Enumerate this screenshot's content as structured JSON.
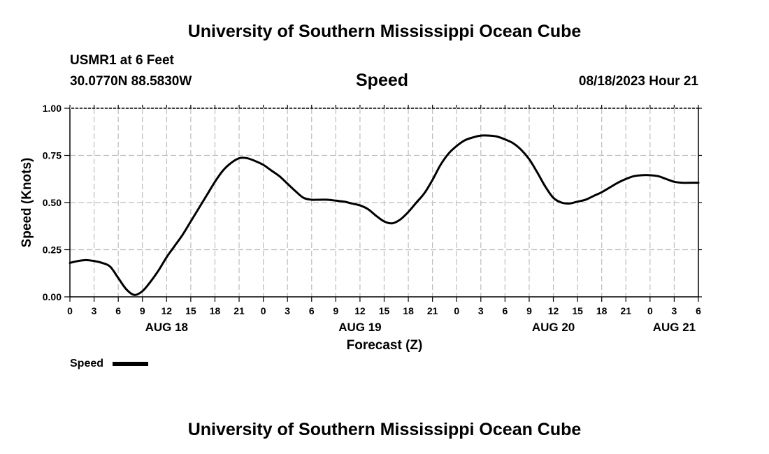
{
  "header": {
    "title": "University of Southern Mississippi Ocean Cube",
    "station": "USMR1 at 6 Feet",
    "coords": "30.0770N  88.5830W",
    "datetime": "08/18/2023 Hour 21",
    "footer_title": "University of Southern Mississippi Ocean Cube"
  },
  "chart_data": {
    "type": "line",
    "title": "Speed",
    "xlabel": "Forecast (Z)",
    "ylabel": "Speed (Knots)",
    "ylim": [
      0,
      1
    ],
    "xlim_hours": [
      0,
      78
    ],
    "yticks": [
      0,
      0.25,
      0.5,
      0.75,
      1.0
    ],
    "ytick_labels": [
      "0.00",
      "0.25",
      "0.50",
      "0.75",
      "1.00"
    ],
    "xtick_labels": [
      "0",
      "3",
      "6",
      "9",
      "12",
      "15",
      "18",
      "21",
      "0",
      "3",
      "6",
      "9",
      "12",
      "15",
      "18",
      "21",
      "0",
      "3",
      "6",
      "9",
      "12",
      "15",
      "18",
      "21",
      "0",
      "3",
      "6"
    ],
    "date_labels": [
      {
        "label": "AUG 18",
        "hour": 12
      },
      {
        "label": "AUG 19",
        "hour": 36
      },
      {
        "label": "AUG 20",
        "hour": 60
      },
      {
        "label": "AUG 21",
        "hour": 75
      }
    ],
    "grid": true,
    "legend": {
      "label": "Speed",
      "placement": "bottom-left"
    },
    "series": [
      {
        "name": "Speed",
        "color": "#000000",
        "x": [
          0,
          1,
          2,
          3,
          4,
          5,
          6,
          7,
          8,
          9,
          10,
          11,
          12,
          13,
          14,
          15,
          16,
          17,
          18,
          19,
          20,
          21,
          22,
          23,
          24,
          25,
          26,
          27,
          28,
          29,
          30,
          31,
          32,
          33,
          34,
          35,
          36,
          37,
          38,
          39,
          40,
          41,
          42,
          43,
          44,
          45,
          46,
          47,
          48,
          49,
          50,
          51,
          52,
          53,
          54,
          55,
          56,
          57,
          58,
          59,
          60,
          61,
          62,
          63,
          64,
          65,
          66,
          67,
          68,
          69,
          70,
          71,
          72,
          73,
          74,
          75,
          76,
          77,
          78
        ],
        "values": [
          0.18,
          0.19,
          0.195,
          0.19,
          0.18,
          0.16,
          0.1,
          0.04,
          0.01,
          0.03,
          0.08,
          0.14,
          0.21,
          0.27,
          0.33,
          0.4,
          0.47,
          0.54,
          0.61,
          0.67,
          0.71,
          0.735,
          0.735,
          0.72,
          0.7,
          0.67,
          0.64,
          0.6,
          0.56,
          0.525,
          0.515,
          0.515,
          0.515,
          0.51,
          0.505,
          0.495,
          0.485,
          0.465,
          0.43,
          0.4,
          0.39,
          0.41,
          0.45,
          0.5,
          0.55,
          0.62,
          0.7,
          0.76,
          0.8,
          0.83,
          0.845,
          0.855,
          0.855,
          0.85,
          0.835,
          0.815,
          0.78,
          0.73,
          0.66,
          0.585,
          0.525,
          0.5,
          0.495,
          0.505,
          0.515,
          0.535,
          0.555,
          0.58,
          0.605,
          0.625,
          0.64,
          0.645,
          0.645,
          0.64,
          0.625,
          0.61,
          0.605,
          0.605,
          0.605
        ]
      }
    ]
  }
}
